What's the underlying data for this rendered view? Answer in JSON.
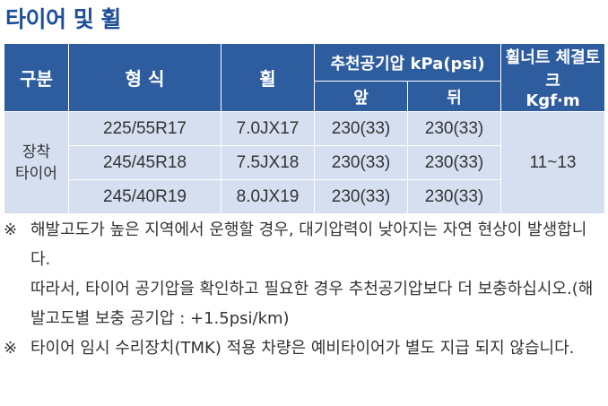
{
  "title": "타이어 및 휠",
  "table": {
    "headers": {
      "category": "구분",
      "type": "형 식",
      "wheel": "휠",
      "pressure": "추천공기압 kPa(psi)",
      "front": "앞",
      "rear": "뒤",
      "torque_line1": "휠너트 체결토크",
      "torque_line2": "Kgf·m"
    },
    "category_line1": "장착",
    "category_line2": "타이어",
    "torque_value": "11~13",
    "rows": [
      {
        "type": "225/55R17",
        "wheel": "7.0JX17",
        "front": "230(33)",
        "rear": "230(33)"
      },
      {
        "type": "245/45R18",
        "wheel": "7.5JX18",
        "front": "230(33)",
        "rear": "230(33)"
      },
      {
        "type": "245/40R19",
        "wheel": "8.0JX19",
        "front": "230(33)",
        "rear": "230(33)"
      }
    ]
  },
  "notes": [
    {
      "mark": "※",
      "lines": [
        "해발고도가 높은 지역에서 운행할 경우, 대기압력이 낮아지는 자연 현상이 발생합니다.",
        "따라서, 타이어 공기압을 확인하고 필요한 경우 추천공기압보다 더 보충하십시오.(해발고도별 보충 공기압 : +1.5psi/km)"
      ]
    },
    {
      "mark": "※",
      "lines": [
        "타이어 임시 수리장치(TMK) 적용 차량은 예비타이어가 별도 지급 되지 않습니다."
      ]
    }
  ]
}
